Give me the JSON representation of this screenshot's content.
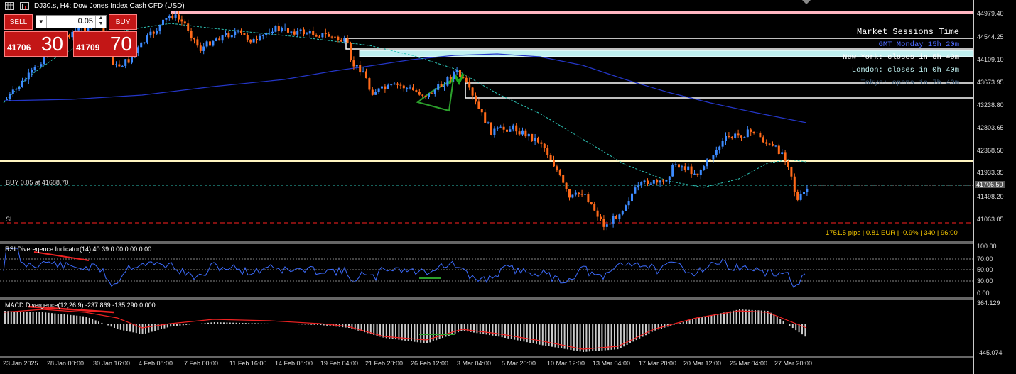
{
  "window": {
    "title": "DJ30.s, H4:  Dow Jones Index Cash CFD (USD)"
  },
  "trade_panel": {
    "sell_label": "SELL",
    "buy_label": "BUY",
    "lot_value": "0.05",
    "sell_price_small": "41706",
    "sell_price_big": "30",
    "buy_price_small": "41709",
    "buy_price_big": "70"
  },
  "price_axis": {
    "labels": [
      "44979.40",
      "44544.25",
      "44109.10",
      "43673.95",
      "43238.80",
      "42803.65",
      "42368.50",
      "41933.35",
      "41498.20",
      "41063.05"
    ],
    "current_price": "41706.50",
    "rsi_labels": [
      "100.00",
      "70.00",
      "50.00",
      "30.00",
      "0.00"
    ],
    "macd_labels": [
      "364.129",
      "-445.074"
    ]
  },
  "chart_lines": {
    "buy_label": "BUY 0.05 at 41688.70",
    "sl_label": "SL",
    "info_text": "1751.5 pips | 0.81 EUR | -0.9% | 340 | 96:00"
  },
  "market_sessions": {
    "title": "Market Sessions Time",
    "gmt": "GMT Monday 15h 20m",
    "new_york": "New York: closes in 5h 40m",
    "london": "London: closes in 0h 40m",
    "tokyo": "Tokyo: opens in 7h 40m"
  },
  "indicators": {
    "rsi_title": "RSI Divereqence Indicator(14) 40.39 0.00 0.00 0.00",
    "macd_title": "MACD Divergence(12,26,9) -237.869 -135.290 0.000"
  },
  "time_axis": [
    "23 Jan 2025",
    "28 Jan 00:00",
    "30 Jan 16:00",
    "4 Feb 08:00",
    "7 Feb 00:00",
    "11 Feb 16:00",
    "14 Feb 08:00",
    "19 Feb 04:00",
    "21 Feb 20:00",
    "26 Feb 12:00",
    "3 Mar 04:00",
    "5 Mar 20:00",
    "10 Mar 12:00",
    "13 Mar 04:00",
    "17 Mar 20:00",
    "20 Mar 12:00",
    "25 Mar 04:00",
    "27 Mar 20:00"
  ],
  "colors": {
    "bull": "#3d8bff",
    "bear": "#ff6a1a",
    "resistance": "#ffb6c1",
    "support": "#fff5c0",
    "sl_line": "#ff2020",
    "ma_fast": "#2ec4b6",
    "ma_slow": "#2436c8",
    "sessions_box": "#bff0f0"
  }
}
